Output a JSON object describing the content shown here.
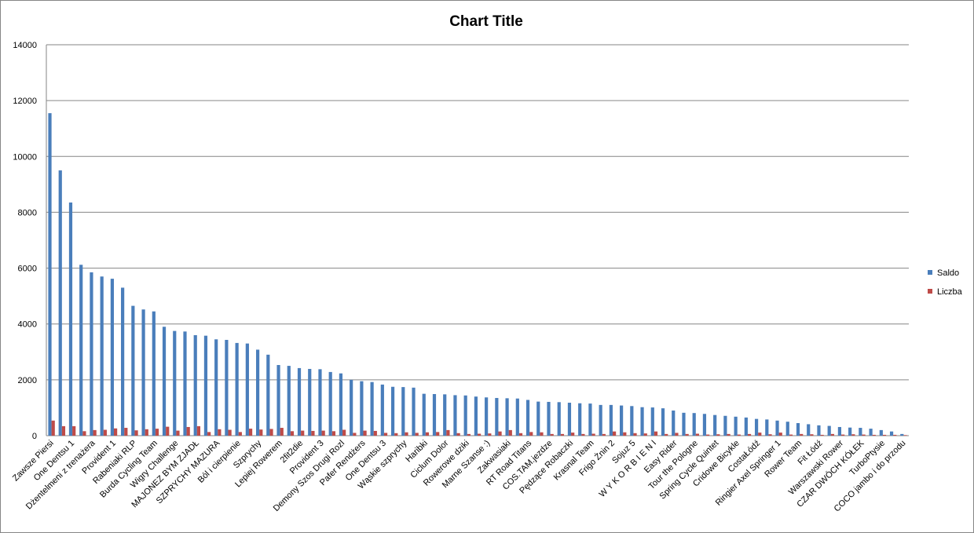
{
  "chart_data": {
    "type": "bar",
    "title": "Chart Title",
    "categories": [
      "Zawsze Piersi",
      null,
      "One Dentsu 1",
      null,
      "Dżentelmeni z trenażera",
      null,
      "Provident 1",
      null,
      "Rabeniaki RLP",
      null,
      "Burda Cycling Team",
      null,
      "Wigry Challenge",
      null,
      "MAJONEZ BYM ZJADŁ",
      null,
      "SZPRYCHY MAZURA",
      null,
      "Ból i cierpienie",
      null,
      "Szprychy",
      null,
      "Lepiej Rowerem",
      null,
      "2fit2die",
      null,
      "Provident 3",
      null,
      "Demony Szos Drugi Rozl",
      null,
      "Pafer Rendżers",
      null,
      "One Dentsu 3",
      null,
      "Wąskie szprychy",
      null,
      "Haribki",
      null,
      "Ciclum Dolor",
      null,
      "Rowerowe dziki",
      null,
      "Marne Szanse :)",
      null,
      "Zakwasiaki",
      null,
      "RT Road Titans",
      null,
      "COS.TAM.jezdze",
      null,
      "Pędzące Robaczki",
      null,
      "Krasnal Team",
      null,
      "Frigo Żnin 2",
      null,
      "Sojuz 5",
      null,
      "W Y K O R B I E N I",
      null,
      "Easy Rider",
      null,
      "Tour the Pologne",
      null,
      "Spring Cycle Quintet",
      null,
      "Cridowe Bicykle",
      null,
      "CostaŁódź",
      null,
      "Ringier Axel Springer 1",
      null,
      "Rower Team",
      null,
      "Fit Łódź",
      null,
      "Warszawski Rower",
      null,
      "CZAR DWÓCH KÓŁEK",
      null,
      "TurboPtysie",
      null,
      "COCO jambo i do przodu"
    ],
    "series": [
      {
        "name": "Saldo",
        "color": "#4a7ebb",
        "values": [
          11550,
          9500,
          8350,
          6120,
          5850,
          5700,
          5620,
          5300,
          4650,
          4520,
          4450,
          3900,
          3750,
          3730,
          3600,
          3580,
          3450,
          3430,
          3320,
          3300,
          3080,
          2900,
          2530,
          2500,
          2420,
          2390,
          2380,
          2280,
          2230,
          2000,
          1950,
          1920,
          1830,
          1750,
          1740,
          1720,
          1500,
          1490,
          1480,
          1450,
          1440,
          1400,
          1370,
          1350,
          1340,
          1330,
          1280,
          1220,
          1210,
          1200,
          1180,
          1160,
          1150,
          1100,
          1100,
          1080,
          1060,
          1020,
          1010,
          980,
          900,
          820,
          810,
          780,
          740,
          710,
          680,
          650,
          600,
          580,
          540,
          500,
          450,
          410,
          370,
          350,
          310,
          290,
          280,
          250,
          200,
          150,
          60
        ]
      },
      {
        "name": "Liczba",
        "color": "#be4b48",
        "values": [
          540,
          340,
          340,
          160,
          200,
          210,
          260,
          280,
          190,
          230,
          250,
          320,
          180,
          310,
          340,
          130,
          230,
          210,
          130,
          250,
          220,
          240,
          280,
          160,
          180,
          170,
          180,
          160,
          210,
          100,
          180,
          170,
          100,
          90,
          120,
          100,
          120,
          130,
          200,
          90,
          60,
          70,
          80,
          150,
          200,
          90,
          130,
          120,
          60,
          60,
          110,
          60,
          70,
          60,
          150,
          120,
          90,
          80,
          150,
          60,
          100,
          60,
          70,
          40,
          50,
          60,
          40,
          60,
          110,
          50,
          110,
          40,
          60,
          50,
          30,
          60,
          40,
          50,
          40,
          30,
          30,
          30,
          20
        ]
      }
    ],
    "ylim": [
      0,
      14000
    ],
    "yticks": [
      0,
      2000,
      4000,
      6000,
      8000,
      10000,
      12000,
      14000
    ],
    "grid": true,
    "legend": "right"
  }
}
